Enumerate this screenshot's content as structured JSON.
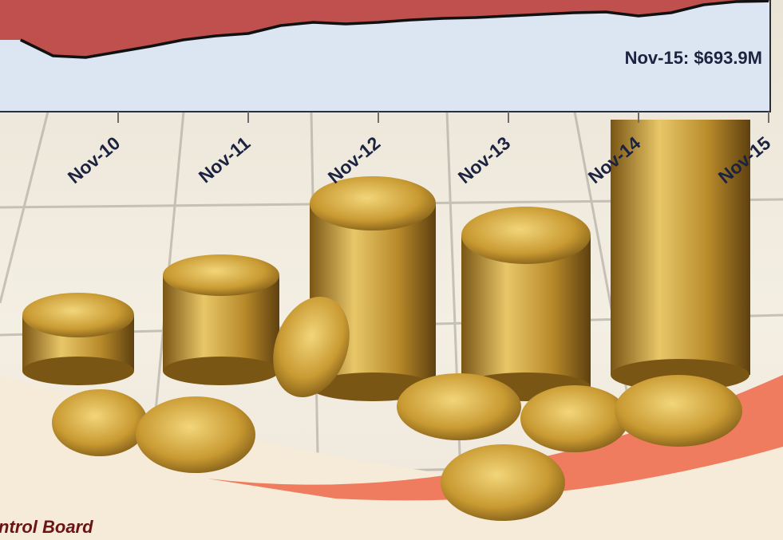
{
  "chart_data": {
    "type": "line",
    "categories": [
      null,
      null,
      null,
      "Nov-10",
      null,
      null,
      null,
      "Nov-11",
      null,
      null,
      null,
      "Nov-12",
      null,
      null,
      null,
      "Nov-13",
      null,
      null,
      null,
      "Nov-14",
      null,
      null,
      null,
      "Nov-15"
    ],
    "series": [
      {
        "color": "#c0504d",
        "values": [
          450,
          350,
          340,
          375,
          410,
          450,
          475,
          490,
          540,
          560,
          550,
          560,
          575,
          585,
          590,
          600,
          610,
          620,
          625,
          600,
          620,
          670,
          690,
          693.9
        ]
      }
    ],
    "ylim": [
      0,
      700
    ],
    "annotation": "Nov-15: $693.9M",
    "source": "ntrol Board"
  }
}
